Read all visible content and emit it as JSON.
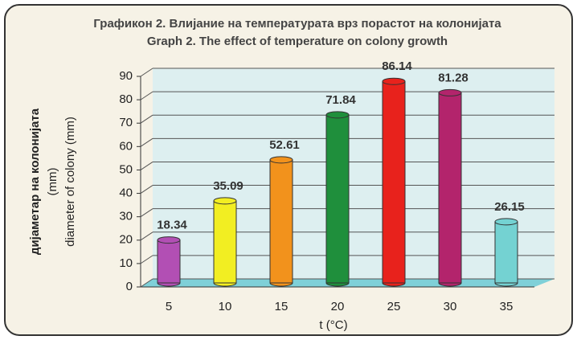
{
  "chart_data": {
    "type": "bar",
    "title": "Графикон 2. Влијание на температурата врз порастот на колонијата",
    "subtitle": "Graph 2. The effect of temperature on colony growth",
    "y_label": [
      "дијаметар на колонијата",
      "(mm)",
      "diameter of colony (mm)"
    ],
    "x_label": "t (°C)",
    "categories": [
      "5",
      "10",
      "15",
      "20",
      "25",
      "30",
      "35"
    ],
    "values": [
      18.34,
      35.09,
      52.61,
      71.84,
      86.14,
      81.28,
      26.15
    ],
    "colors": [
      "#b24fb4",
      "#f2ee22",
      "#f2921c",
      "#1f8f3c",
      "#e8221c",
      "#b3246c",
      "#74d2d2"
    ],
    "ylim": [
      0,
      90
    ],
    "yticks": [
      0,
      10,
      20,
      30,
      40,
      50,
      60,
      70,
      80,
      90
    ],
    "grid": true
  }
}
